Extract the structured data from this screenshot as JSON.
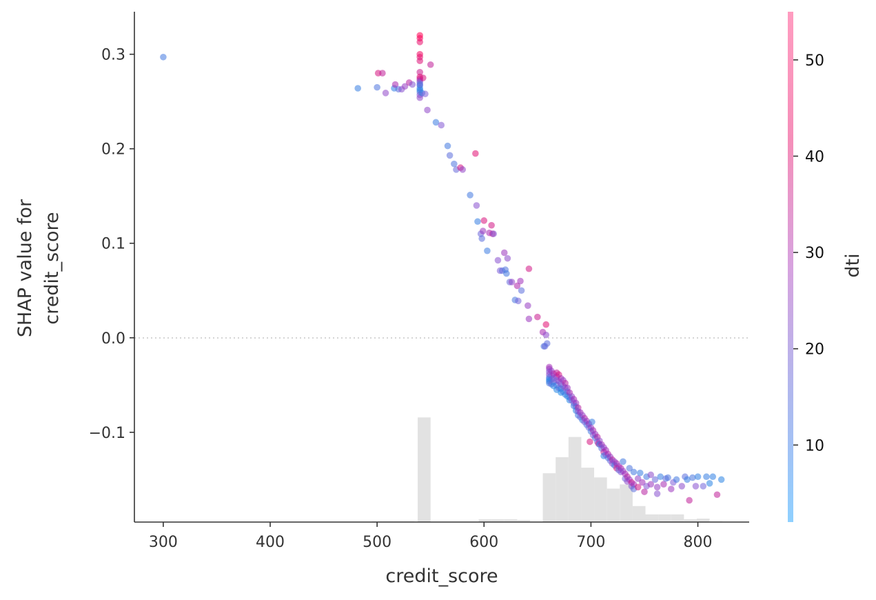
{
  "chart_data": {
    "type": "scatter",
    "xlabel": "credit_score",
    "ylabel_lines": [
      "SHAP value for",
      "credit_score"
    ],
    "colorbar_label": "dti",
    "xlim": [
      273,
      848
    ],
    "ylim": [
      -0.195,
      0.345
    ],
    "xticks": [
      300,
      400,
      500,
      600,
      700,
      800
    ],
    "yticks": [
      -0.1,
      0.0,
      0.1,
      0.2,
      0.3
    ],
    "ytick_labels": [
      "−0.1",
      "0.0",
      "0.1",
      "0.2",
      "0.3"
    ],
    "zero_line": true,
    "colorbar": {
      "range": [
        2,
        55
      ],
      "ticks": [
        10,
        20,
        30,
        40,
        50
      ],
      "colors": [
        "#8fd0ff",
        "#b0b8ee",
        "#d7a3df",
        "#f58fb9",
        "#ff9cc0"
      ]
    },
    "color_scale": [
      {
        "dti": 2,
        "color": "#1e88e5"
      },
      {
        "dti": 18,
        "color": "#7f5fd8"
      },
      {
        "dti": 33,
        "color": "#a22bb8"
      },
      {
        "dti": 55,
        "color": "#ff0052"
      }
    ],
    "histogram": {
      "color": "#e2e2e2",
      "bins": [
        {
          "x0": 495,
          "x1": 505,
          "count": 1
        },
        {
          "x0": 505,
          "x1": 515,
          "count": 1
        },
        {
          "x0": 515,
          "x1": 525,
          "count": 1
        },
        {
          "x0": 525,
          "x1": 535,
          "count": 1
        },
        {
          "x0": 538,
          "x1": 550,
          "count": 150
        },
        {
          "x0": 595,
          "x1": 607,
          "count": 4
        },
        {
          "x0": 607,
          "x1": 619,
          "count": 4
        },
        {
          "x0": 619,
          "x1": 631,
          "count": 4
        },
        {
          "x0": 631,
          "x1": 643,
          "count": 3
        },
        {
          "x0": 655,
          "x1": 667,
          "count": 70
        },
        {
          "x0": 667,
          "x1": 679,
          "count": 93
        },
        {
          "x0": 679,
          "x1": 691,
          "count": 122
        },
        {
          "x0": 691,
          "x1": 703,
          "count": 78
        },
        {
          "x0": 703,
          "x1": 715,
          "count": 64
        },
        {
          "x0": 715,
          "x1": 727,
          "count": 48
        },
        {
          "x0": 727,
          "x1": 739,
          "count": 54
        },
        {
          "x0": 739,
          "x1": 751,
          "count": 23
        },
        {
          "x0": 751,
          "x1": 763,
          "count": 11
        },
        {
          "x0": 763,
          "x1": 775,
          "count": 11
        },
        {
          "x0": 775,
          "x1": 787,
          "count": 11
        },
        {
          "x0": 787,
          "x1": 799,
          "count": 4
        },
        {
          "x0": 799,
          "x1": 811,
          "count": 5
        },
        {
          "x0": 811,
          "x1": 823,
          "count": 1
        }
      ]
    },
    "points": [
      [
        300,
        0.297,
        8
      ],
      [
        482,
        0.264,
        6
      ],
      [
        500,
        0.265,
        10
      ],
      [
        501,
        0.28,
        45
      ],
      [
        505,
        0.28,
        40
      ],
      [
        508,
        0.259,
        25
      ],
      [
        516,
        0.264,
        5
      ],
      [
        517,
        0.268,
        35
      ],
      [
        520,
        0.263,
        12
      ],
      [
        523,
        0.263,
        22
      ],
      [
        526,
        0.266,
        28
      ],
      [
        530,
        0.27,
        38
      ],
      [
        533,
        0.268,
        20
      ],
      [
        540,
        0.32,
        55
      ],
      [
        540,
        0.317,
        53
      ],
      [
        540,
        0.313,
        50
      ],
      [
        540,
        0.3,
        52
      ],
      [
        540,
        0.297,
        49
      ],
      [
        540,
        0.293,
        47
      ],
      [
        540,
        0.281,
        42
      ],
      [
        540,
        0.276,
        48
      ],
      [
        540,
        0.274,
        44
      ],
      [
        540,
        0.272,
        30
      ],
      [
        540,
        0.27,
        15
      ],
      [
        540,
        0.267,
        10
      ],
      [
        540,
        0.264,
        5
      ],
      [
        540,
        0.262,
        3
      ],
      [
        540,
        0.26,
        8
      ],
      [
        540,
        0.257,
        20
      ],
      [
        540,
        0.254,
        25
      ],
      [
        540,
        0.268,
        12
      ],
      [
        542,
        0.259,
        6
      ],
      [
        543,
        0.275,
        45
      ],
      [
        545,
        0.258,
        18
      ],
      [
        547,
        0.241,
        25
      ],
      [
        550,
        0.289,
        40
      ],
      [
        555,
        0.228,
        7
      ],
      [
        560,
        0.225,
        20
      ],
      [
        566,
        0.203,
        8
      ],
      [
        568,
        0.193,
        12
      ],
      [
        572,
        0.184,
        10
      ],
      [
        574,
        0.178,
        14
      ],
      [
        578,
        0.18,
        45
      ],
      [
        580,
        0.178,
        26
      ],
      [
        587,
        0.151,
        8
      ],
      [
        592,
        0.195,
        48
      ],
      [
        593,
        0.14,
        22
      ],
      [
        594,
        0.123,
        6
      ],
      [
        597,
        0.11,
        15
      ],
      [
        598,
        0.105,
        12
      ],
      [
        599,
        0.113,
        30
      ],
      [
        600,
        0.124,
        46
      ],
      [
        603,
        0.092,
        7
      ],
      [
        605,
        0.111,
        34
      ],
      [
        607,
        0.119,
        44
      ],
      [
        608,
        0.11,
        40
      ],
      [
        609,
        0.11,
        20
      ],
      [
        613,
        0.082,
        22
      ],
      [
        615,
        0.071,
        18
      ],
      [
        617,
        0.071,
        12
      ],
      [
        619,
        0.09,
        30
      ],
      [
        620,
        0.072,
        10
      ],
      [
        621,
        0.068,
        8
      ],
      [
        622,
        0.084,
        24
      ],
      [
        624,
        0.059,
        14
      ],
      [
        626,
        0.059,
        26
      ],
      [
        629,
        0.04,
        9
      ],
      [
        631,
        0.055,
        36
      ],
      [
        632,
        0.039,
        16
      ],
      [
        634,
        0.06,
        32
      ],
      [
        635,
        0.05,
        12
      ],
      [
        641,
        0.034,
        28
      ],
      [
        642,
        0.073,
        44
      ],
      [
        642,
        0.02,
        30
      ],
      [
        650,
        0.022,
        42
      ],
      [
        655,
        0.006,
        35
      ],
      [
        656,
        -0.009,
        9
      ],
      [
        657,
        -0.009,
        14
      ],
      [
        658,
        0.014,
        48
      ],
      [
        658,
        0.003,
        24
      ],
      [
        659,
        -0.006,
        12
      ],
      [
        661,
        -0.031,
        33
      ],
      [
        661,
        -0.033,
        30
      ],
      [
        661,
        -0.036,
        20
      ],
      [
        661,
        -0.039,
        25
      ],
      [
        661,
        -0.042,
        10
      ],
      [
        661,
        -0.044,
        5
      ],
      [
        661,
        -0.046,
        3
      ],
      [
        661,
        -0.048,
        8
      ],
      [
        663,
        -0.035,
        28
      ],
      [
        663,
        -0.04,
        18
      ],
      [
        663,
        -0.044,
        6
      ],
      [
        663,
        -0.049,
        12
      ],
      [
        665,
        -0.038,
        35
      ],
      [
        665,
        -0.043,
        22
      ],
      [
        665,
        -0.047,
        14
      ],
      [
        665,
        -0.051,
        4
      ],
      [
        668,
        -0.037,
        40
      ],
      [
        668,
        -0.041,
        30
      ],
      [
        668,
        -0.045,
        18
      ],
      [
        668,
        -0.05,
        8
      ],
      [
        668,
        -0.055,
        3
      ],
      [
        670,
        -0.039,
        45
      ],
      [
        670,
        -0.046,
        25
      ],
      [
        670,
        -0.053,
        12
      ],
      [
        672,
        -0.043,
        33
      ],
      [
        672,
        -0.049,
        20
      ],
      [
        672,
        -0.054,
        6
      ],
      [
        672,
        -0.058,
        2
      ],
      [
        674,
        -0.045,
        28
      ],
      [
        674,
        -0.051,
        15
      ],
      [
        674,
        -0.057,
        8
      ],
      [
        676,
        -0.048,
        38
      ],
      [
        676,
        -0.053,
        22
      ],
      [
        676,
        -0.06,
        5
      ],
      [
        678,
        -0.053,
        30
      ],
      [
        678,
        -0.057,
        14
      ],
      [
        678,
        -0.062,
        4
      ],
      [
        680,
        -0.058,
        35
      ],
      [
        680,
        -0.063,
        10
      ],
      [
        680,
        -0.066,
        3
      ],
      [
        682,
        -0.062,
        26
      ],
      [
        682,
        -0.066,
        16
      ],
      [
        684,
        -0.065,
        34
      ],
      [
        684,
        -0.069,
        20
      ],
      [
        684,
        -0.072,
        7
      ],
      [
        686,
        -0.069,
        30
      ],
      [
        686,
        -0.073,
        12
      ],
      [
        686,
        -0.077,
        4
      ],
      [
        688,
        -0.074,
        38
      ],
      [
        688,
        -0.078,
        22
      ],
      [
        688,
        -0.082,
        8
      ],
      [
        690,
        -0.079,
        32
      ],
      [
        690,
        -0.084,
        14
      ],
      [
        692,
        -0.082,
        27
      ],
      [
        692,
        -0.087,
        6
      ],
      [
        694,
        -0.085,
        36
      ],
      [
        694,
        -0.089,
        18
      ],
      [
        696,
        -0.088,
        30
      ],
      [
        696,
        -0.092,
        10
      ],
      [
        698,
        -0.091,
        33
      ],
      [
        698,
        -0.095,
        15
      ],
      [
        699,
        -0.11,
        45
      ],
      [
        700,
        -0.095,
        28
      ],
      [
        700,
        -0.099,
        8
      ],
      [
        701,
        -0.089,
        6
      ],
      [
        702,
        -0.098,
        35
      ],
      [
        702,
        -0.103,
        20
      ],
      [
        704,
        -0.102,
        30
      ],
      [
        704,
        -0.106,
        10
      ],
      [
        706,
        -0.105,
        38
      ],
      [
        706,
        -0.11,
        16
      ],
      [
        707,
        -0.112,
        44
      ],
      [
        708,
        -0.109,
        26
      ],
      [
        708,
        -0.113,
        6
      ],
      [
        710,
        -0.113,
        33
      ],
      [
        710,
        -0.117,
        12
      ],
      [
        712,
        -0.116,
        28
      ],
      [
        712,
        -0.121,
        40
      ],
      [
        712,
        -0.125,
        4
      ],
      [
        714,
        -0.119,
        32
      ],
      [
        714,
        -0.124,
        18
      ],
      [
        716,
        -0.123,
        36
      ],
      [
        716,
        -0.127,
        10
      ],
      [
        718,
        -0.126,
        30
      ],
      [
        718,
        -0.13,
        14
      ],
      [
        720,
        -0.129,
        38
      ],
      [
        720,
        -0.133,
        22
      ],
      [
        722,
        -0.131,
        26
      ],
      [
        722,
        -0.135,
        8
      ],
      [
        724,
        -0.133,
        34
      ],
      [
        724,
        -0.138,
        45
      ],
      [
        726,
        -0.136,
        30
      ],
      [
        726,
        -0.14,
        12
      ],
      [
        728,
        -0.138,
        36
      ],
      [
        728,
        -0.142,
        20
      ],
      [
        730,
        -0.131,
        8
      ],
      [
        730,
        -0.141,
        28
      ],
      [
        732,
        -0.144,
        33
      ],
      [
        732,
        -0.149,
        16
      ],
      [
        734,
        -0.147,
        38
      ],
      [
        734,
        -0.152,
        24
      ],
      [
        736,
        -0.138,
        10
      ],
      [
        736,
        -0.15,
        30
      ],
      [
        738,
        -0.153,
        42
      ],
      [
        738,
        -0.157,
        20
      ],
      [
        740,
        -0.142,
        8
      ],
      [
        740,
        -0.155,
        34
      ],
      [
        740,
        -0.16,
        12
      ],
      [
        744,
        -0.149,
        26
      ],
      [
        744,
        -0.158,
        44
      ],
      [
        746,
        -0.143,
        6
      ],
      [
        748,
        -0.153,
        32
      ],
      [
        750,
        -0.163,
        38
      ],
      [
        752,
        -0.147,
        8
      ],
      [
        752,
        -0.157,
        20
      ],
      [
        756,
        -0.145,
        24
      ],
      [
        756,
        -0.155,
        30
      ],
      [
        760,
        -0.15,
        14
      ],
      [
        762,
        -0.158,
        28
      ],
      [
        762,
        -0.165,
        22
      ],
      [
        765,
        -0.147,
        6
      ],
      [
        768,
        -0.155,
        34
      ],
      [
        770,
        -0.149,
        12
      ],
      [
        772,
        -0.148,
        10
      ],
      [
        775,
        -0.16,
        30
      ],
      [
        777,
        -0.153,
        18
      ],
      [
        780,
        -0.15,
        8
      ],
      [
        785,
        -0.157,
        24
      ],
      [
        788,
        -0.147,
        12
      ],
      [
        790,
        -0.15,
        6
      ],
      [
        792,
        -0.172,
        40
      ],
      [
        795,
        -0.148,
        9
      ],
      [
        798,
        -0.157,
        22
      ],
      [
        800,
        -0.147,
        5
      ],
      [
        805,
        -0.157,
        16
      ],
      [
        808,
        -0.147,
        6
      ],
      [
        811,
        -0.154,
        4
      ],
      [
        814,
        -0.147,
        5
      ],
      [
        818,
        -0.166,
        40
      ],
      [
        822,
        -0.15,
        4
      ]
    ]
  }
}
